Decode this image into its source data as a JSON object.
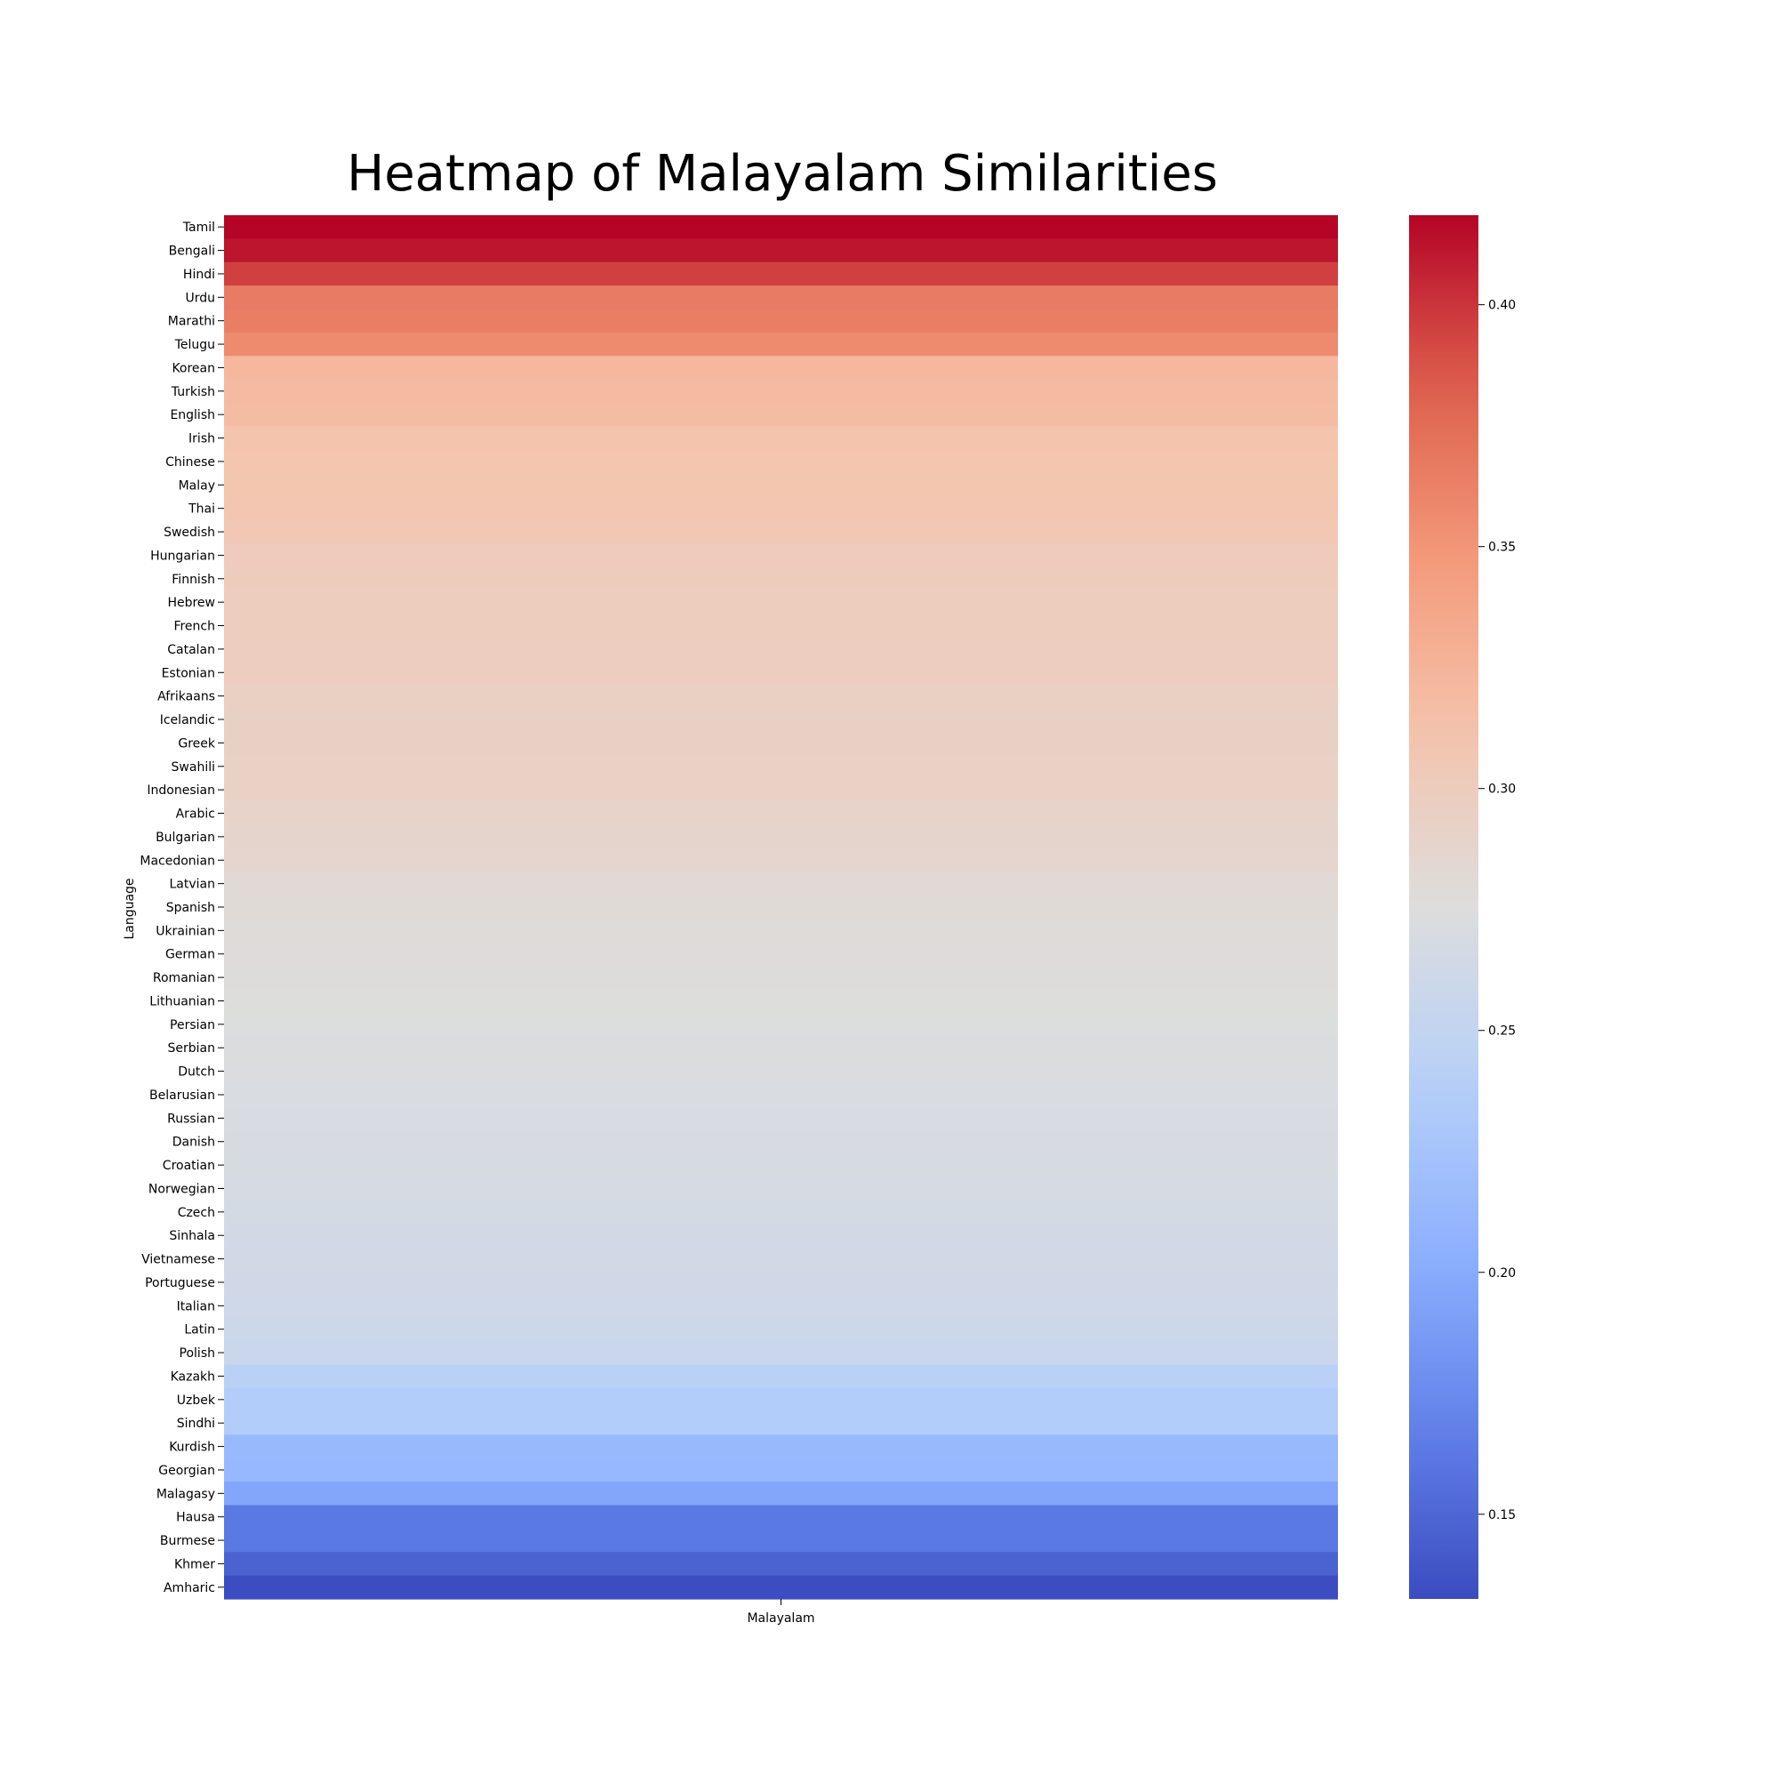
{
  "chart_data": {
    "type": "heatmap",
    "title": "Heatmap of Malayalam Similarities",
    "xlabel": "",
    "ylabel": "Language",
    "columns": [
      "Malayalam"
    ],
    "rows": [
      "Tamil",
      "Bengali",
      "Hindi",
      "Urdu",
      "Marathi",
      "Telugu",
      "Korean",
      "Turkish",
      "English",
      "Irish",
      "Chinese",
      "Malay",
      "Thai",
      "Swedish",
      "Hungarian",
      "Finnish",
      "Hebrew",
      "French",
      "Catalan",
      "Estonian",
      "Afrikaans",
      "Icelandic",
      "Greek",
      "Swahili",
      "Indonesian",
      "Arabic",
      "Bulgarian",
      "Macedonian",
      "Latvian",
      "Spanish",
      "Ukrainian",
      "German",
      "Romanian",
      "Lithuanian",
      "Persian",
      "Serbian",
      "Dutch",
      "Belarusian",
      "Russian",
      "Danish",
      "Croatian",
      "Norwegian",
      "Czech",
      "Sinhala",
      "Vietnamese",
      "Portuguese",
      "Italian",
      "Latin",
      "Polish",
      "Kazakh",
      "Uzbek",
      "Sindhi",
      "Kurdish",
      "Georgian",
      "Malagasy",
      "Hausa",
      "Burmese",
      "Khmer",
      "Amharic"
    ],
    "values": [
      0.418,
      0.412,
      0.395,
      0.366,
      0.364,
      0.357,
      0.322,
      0.319,
      0.318,
      0.311,
      0.31,
      0.309,
      0.308,
      0.307,
      0.301,
      0.3,
      0.299,
      0.299,
      0.298,
      0.298,
      0.295,
      0.294,
      0.294,
      0.293,
      0.293,
      0.289,
      0.288,
      0.287,
      0.281,
      0.28,
      0.279,
      0.278,
      0.277,
      0.276,
      0.275,
      0.274,
      0.273,
      0.272,
      0.271,
      0.27,
      0.269,
      0.268,
      0.267,
      0.265,
      0.264,
      0.263,
      0.262,
      0.259,
      0.256,
      0.242,
      0.236,
      0.236,
      0.214,
      0.213,
      0.196,
      0.162,
      0.162,
      0.147,
      0.133
    ],
    "colorscale": "coolwarm",
    "colorbar": {
      "range": [
        0.1325,
        0.4185
      ],
      "ticks": [
        0.15,
        0.2,
        0.25,
        0.3,
        0.35,
        0.4
      ],
      "tick_labels": [
        "0.15",
        "0.20",
        "0.25",
        "0.30",
        "0.35",
        "0.40"
      ]
    }
  }
}
